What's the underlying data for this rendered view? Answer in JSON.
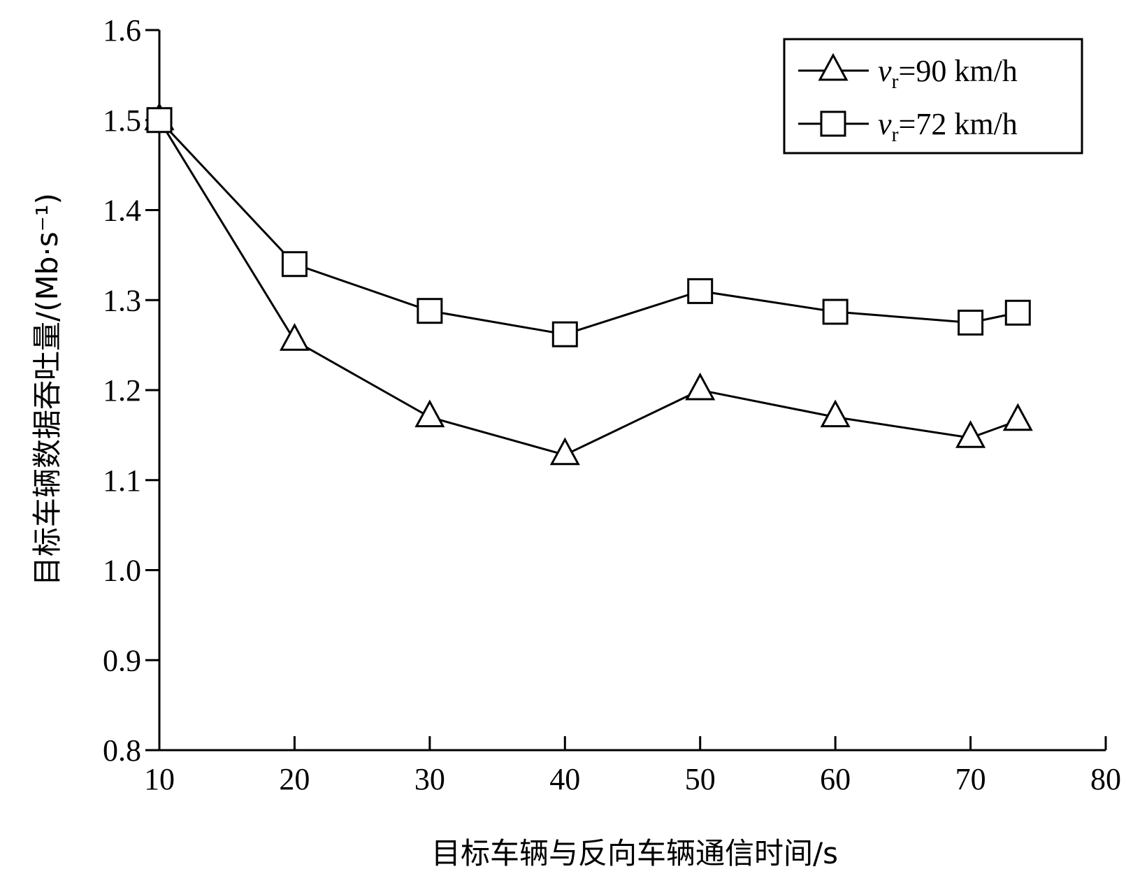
{
  "chart_data": {
    "type": "line",
    "title": "",
    "xlabel": "目标车辆与反向车辆通信时间/s",
    "ylabel": "目标车辆数据吞吐量/(Mb·s⁻¹)",
    "xlim": [
      10,
      80
    ],
    "ylim": [
      0.8,
      1.6
    ],
    "x_ticks": [
      "10",
      "20",
      "30",
      "40",
      "50",
      "60",
      "70",
      "80"
    ],
    "y_ticks": [
      "0.8",
      "0.9",
      "1.0",
      "1.1",
      "1.2",
      "1.3",
      "1.4",
      "1.5",
      "1.6"
    ],
    "x": [
      10,
      20,
      30,
      40,
      50,
      60,
      70,
      73.5
    ],
    "series": [
      {
        "name": "vr=90 km/h",
        "name_parts": {
          "v": "v",
          "sub": "r",
          "rest": "=90 km/h"
        },
        "marker": "triangle",
        "values": [
          1.5,
          1.255,
          1.17,
          1.128,
          1.2,
          1.17,
          1.147,
          1.166
        ]
      },
      {
        "name": "vr=72 km/h",
        "name_parts": {
          "v": "v",
          "sub": "r",
          "rest": "=72 km/h"
        },
        "marker": "square",
        "values": [
          1.5,
          1.34,
          1.288,
          1.262,
          1.31,
          1.287,
          1.275,
          1.286
        ]
      }
    ],
    "legend_position": "top-right",
    "grid": false
  }
}
